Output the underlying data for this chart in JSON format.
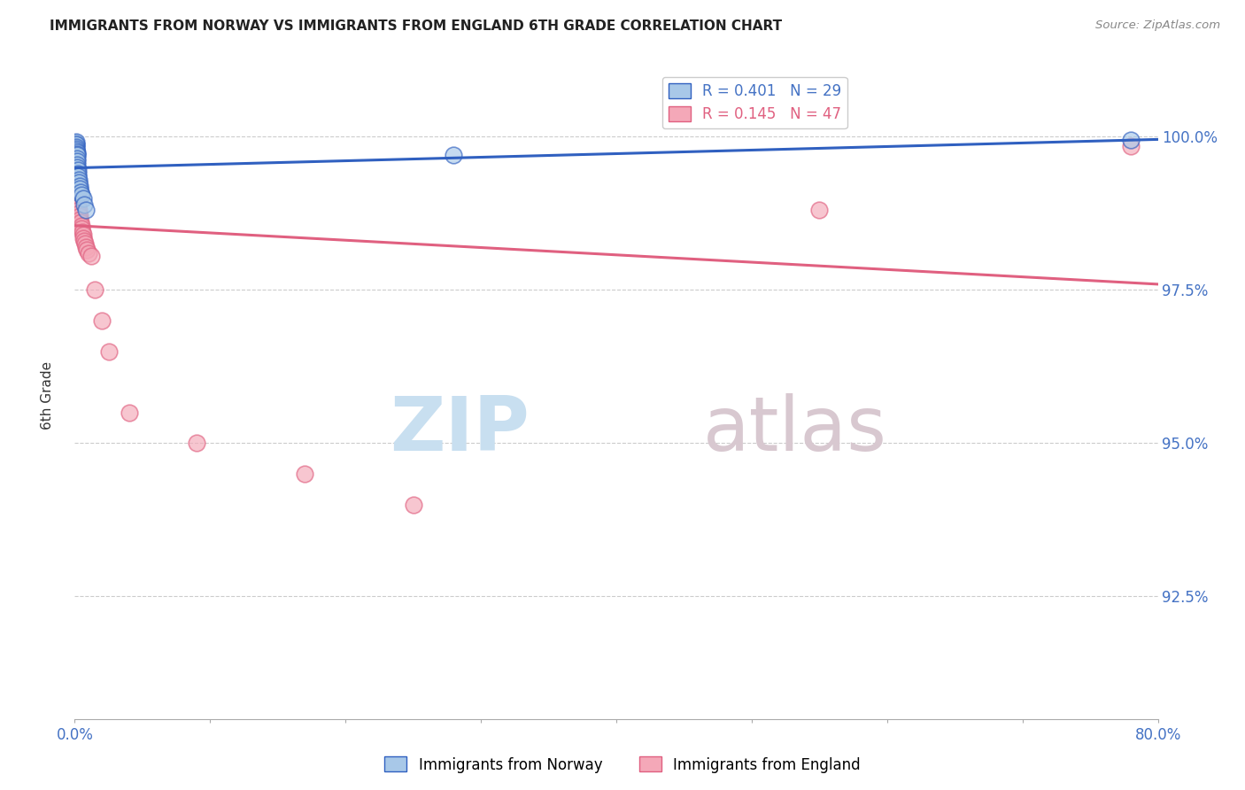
{
  "title": "IMMIGRANTS FROM NORWAY VS IMMIGRANTS FROM ENGLAND 6TH GRADE CORRELATION CHART",
  "source": "Source: ZipAtlas.com",
  "ylabel": "6th Grade",
  "yticks": [
    92.5,
    95.0,
    97.5,
    100.0
  ],
  "ytick_labels": [
    "92.5%",
    "95.0%",
    "97.5%",
    "100.0%"
  ],
  "xlim": [
    0.0,
    80.0
  ],
  "ylim": [
    90.5,
    101.2
  ],
  "norway_color": "#a8c8e8",
  "england_color": "#f4a8b8",
  "norway_R": 0.401,
  "norway_N": 29,
  "england_R": 0.145,
  "england_N": 47,
  "watermark_zip": "ZIP",
  "watermark_atlas": "atlas",
  "watermark_color_zip": "#c8dff0",
  "watermark_color_atlas": "#d8c8d0",
  "grid_color": "#cccccc",
  "title_fontsize": 11,
  "tick_label_color": "#4472c4",
  "norway_line_color": "#3060c0",
  "england_line_color": "#e06080",
  "norway_x": [
    0.04,
    0.06,
    0.08,
    0.09,
    0.1,
    0.11,
    0.12,
    0.13,
    0.14,
    0.15,
    0.16,
    0.17,
    0.18,
    0.19,
    0.2,
    0.22,
    0.24,
    0.26,
    0.28,
    0.3,
    0.35,
    0.4,
    0.45,
    0.5,
    0.6,
    0.7,
    0.8,
    28.0,
    78.0
  ],
  "norway_y": [
    99.85,
    99.9,
    99.88,
    99.92,
    99.87,
    99.83,
    99.8,
    99.78,
    99.75,
    99.72,
    99.7,
    99.65,
    99.6,
    99.55,
    99.5,
    99.45,
    99.4,
    99.35,
    99.3,
    99.25,
    99.2,
    99.15,
    99.1,
    99.05,
    99.0,
    98.9,
    98.8,
    99.7,
    99.95
  ],
  "england_x": [
    0.04,
    0.06,
    0.08,
    0.09,
    0.1,
    0.11,
    0.12,
    0.13,
    0.14,
    0.15,
    0.16,
    0.17,
    0.18,
    0.19,
    0.2,
    0.21,
    0.22,
    0.23,
    0.24,
    0.25,
    0.27,
    0.3,
    0.33,
    0.36,
    0.4,
    0.44,
    0.48,
    0.52,
    0.56,
    0.6,
    0.65,
    0.7,
    0.75,
    0.8,
    0.9,
    1.0,
    1.2,
    1.5,
    2.0,
    2.5,
    4.0,
    9.0,
    17.0,
    25.0,
    55.0,
    78.0,
    0.1
  ],
  "england_y": [
    99.85,
    99.8,
    99.75,
    99.7,
    99.65,
    99.6,
    99.55,
    99.5,
    99.45,
    99.4,
    99.35,
    99.3,
    99.25,
    99.2,
    99.15,
    99.1,
    99.05,
    99.0,
    98.95,
    98.9,
    98.85,
    98.8,
    98.75,
    98.7,
    98.65,
    98.6,
    98.55,
    98.5,
    98.45,
    98.4,
    98.35,
    98.3,
    98.25,
    98.2,
    98.15,
    98.1,
    98.05,
    97.5,
    97.0,
    96.5,
    95.5,
    95.0,
    94.5,
    94.0,
    98.8,
    99.85,
    99.6
  ]
}
